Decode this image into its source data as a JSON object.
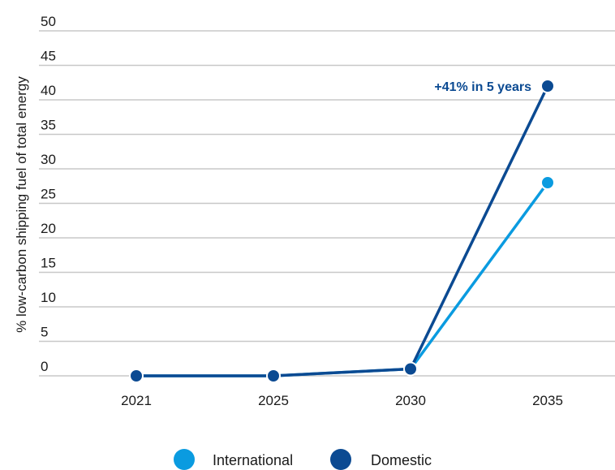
{
  "chart_data": {
    "type": "line",
    "x": [
      "2021",
      "2025",
      "2030",
      "2035"
    ],
    "series": [
      {
        "name": "International",
        "values": [
          0,
          0,
          1,
          28
        ],
        "color": "#0a9be0"
      },
      {
        "name": "Domestic",
        "values": [
          0,
          0,
          1,
          42
        ],
        "color": "#0b4a92"
      }
    ],
    "ylabel": "% low-carbon shipping fuel of total energy",
    "ylim": [
      0,
      50
    ],
    "yticks": [
      0,
      5,
      10,
      15,
      20,
      25,
      30,
      35,
      40,
      45,
      50
    ],
    "grid": true,
    "legend": "bottom-center",
    "annotations": [
      {
        "text": "+41% in 5 years",
        "series": "Domestic",
        "x": "2035"
      }
    ]
  }
}
